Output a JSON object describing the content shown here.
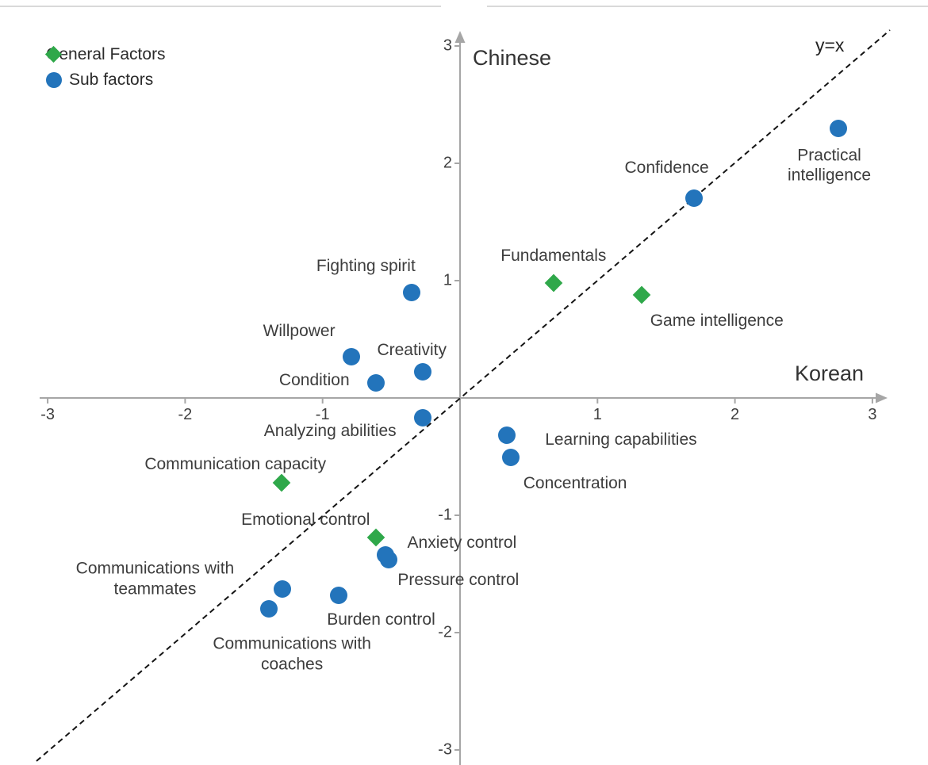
{
  "decorations": {
    "top_rule_color": "#d9d9d9"
  },
  "legend": {
    "items": [
      {
        "label": "General Factors",
        "marker": "diamond",
        "color": "#2fa84a"
      },
      {
        "label": "Sub factors",
        "marker": "circle",
        "color": "#2374bb"
      }
    ]
  },
  "chart_data": {
    "type": "scatter",
    "title": "",
    "xlabel": "Korean",
    "ylabel": "Chinese",
    "xlim": [
      -3,
      3
    ],
    "ylim": [
      -3,
      3
    ],
    "x_ticks": [
      -3,
      -2,
      -1,
      1,
      2,
      3
    ],
    "y_ticks": [
      3,
      2,
      1,
      -1,
      -2,
      -3
    ],
    "grid": false,
    "legend_position": "top-left",
    "axis_color": "#a6a6a6",
    "label_color": "#3d3d3d",
    "reference_line": {
      "label": "y=x",
      "style": "dashed",
      "color": "#141414"
    },
    "series": [
      {
        "name": "General Factors",
        "marker": "diamond",
        "color": "#2fa84a",
        "points": [
          {
            "label": "Fundamentals",
            "x": 0.68,
            "y": 0.98,
            "label_dx": 0,
            "label_dy": -34
          },
          {
            "label": "Game intelligence",
            "x": 1.32,
            "y": 0.88,
            "label_dx": 95,
            "label_dy": 33
          },
          {
            "label": "Communication capacity",
            "x": -1.3,
            "y": -0.72,
            "label_dx": -58,
            "label_dy": -23
          },
          {
            "label": "Emotional control",
            "x": -0.61,
            "y": -1.19,
            "label_dx": -89,
            "label_dy": -22
          }
        ]
      },
      {
        "name": "Sub factors",
        "marker": "circle",
        "color": "#2374bb",
        "points": [
          {
            "label": "Practical intelligence",
            "lines": [
              "Practical",
              "intelligence"
            ],
            "x": 2.75,
            "y": 2.3,
            "label_dx": -11,
            "label_dy": 47
          },
          {
            "label": "Confidence",
            "x": 1.7,
            "y": 1.7,
            "label_dx": -34,
            "label_dy": -38
          },
          {
            "label": "Fighting spirit",
            "x": -0.35,
            "y": 0.9,
            "label_dx": -58,
            "label_dy": -33
          },
          {
            "label": "Willpower",
            "x": -0.79,
            "y": 0.35,
            "label_dx": -66,
            "label_dy": -32
          },
          {
            "label": "Creativity",
            "x": -0.27,
            "y": 0.22,
            "label_dx": -14,
            "label_dy": -27
          },
          {
            "label": "Condition",
            "x": -0.61,
            "y": 0.13,
            "label_dx": -78,
            "label_dy": -3
          },
          {
            "label": "Analyzing abilities",
            "x": -0.27,
            "y": -0.17,
            "label_dx": -117,
            "label_dy": 17
          },
          {
            "label": "Learning capabilities",
            "x": 0.34,
            "y": -0.32,
            "label_dx": 144,
            "label_dy": 6
          },
          {
            "label": "Concentration",
            "x": 0.37,
            "y": -0.51,
            "label_dx": 81,
            "label_dy": 33
          },
          {
            "label": "Anxiety control",
            "x": -0.54,
            "y": -1.34,
            "label_dx": 96,
            "label_dy": -15
          },
          {
            "label": "Pressure control",
            "x": -0.52,
            "y": -1.38,
            "label_dx": 88,
            "label_dy": 26
          },
          {
            "label": "Burden control",
            "x": -0.88,
            "y": -1.68,
            "label_dx": 53,
            "label_dy": 31
          },
          {
            "label": "Communications with teammates",
            "lines": [
              "Communications with",
              "teammates"
            ],
            "x": -1.29,
            "y": -1.63,
            "label_dx": -161,
            "label_dy": -13
          },
          {
            "label": "Communications with coaches",
            "lines": [
              "Communications with",
              "coaches"
            ],
            "x": -1.39,
            "y": -1.8,
            "label_dx": 29,
            "label_dy": 57
          }
        ]
      }
    ]
  }
}
